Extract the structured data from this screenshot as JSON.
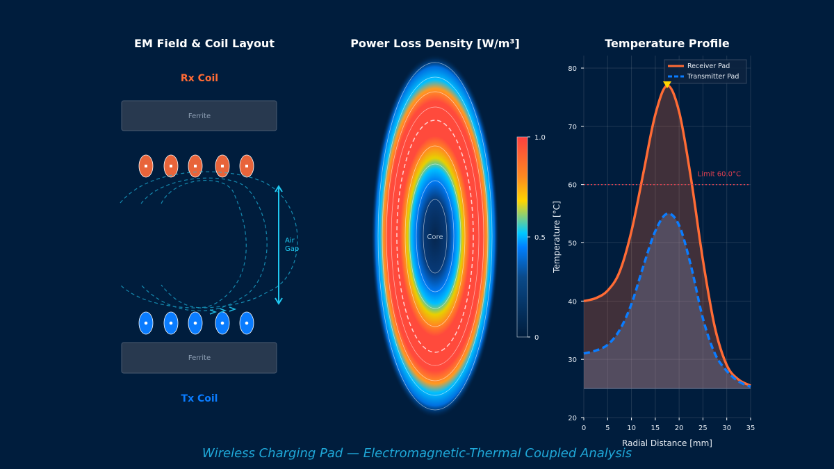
{
  "footer": "Wireless Charging Pad — Electromagnetic-Thermal Coupled Analysis",
  "colors": {
    "background": "#001d3d",
    "receiver": "#ff6b35",
    "transmitter": "#0a7cff",
    "field": "#1fb8e0",
    "limit": "#e04050",
    "accent": "#1fa8d8"
  },
  "panel_left": {
    "title": "EM Field & Coil Layout",
    "rx_label": "Rx Coil",
    "tx_label": "Tx Coil",
    "ferrite_top": "Ferrite",
    "ferrite_bottom": "Ferrite",
    "air_gap_line1": "Air",
    "air_gap_line2": "Gap"
  },
  "panel_middle": {
    "title": "Power Loss Density [W/m³]",
    "core_label": "Core",
    "colorbar_ticks": [
      "1.0",
      "0.5",
      "0"
    ],
    "colorbar_range": [
      0,
      1.0
    ]
  },
  "chart_data": {
    "type": "line",
    "title": "Temperature Profile",
    "xlabel": "Radial Distance [mm]",
    "ylabel": "Temperature [°C]",
    "xlim": [
      0,
      35
    ],
    "ylim": [
      20,
      82
    ],
    "xticks": [
      0,
      5,
      10,
      15,
      20,
      25,
      30,
      35
    ],
    "yticks": [
      20,
      30,
      40,
      50,
      60,
      70,
      80
    ],
    "grid": true,
    "legend_placement": "top-right",
    "x": [
      0,
      2.5,
      5,
      7.5,
      10,
      12.5,
      15,
      17.5,
      20,
      22.5,
      25,
      27.5,
      30,
      32.5,
      35
    ],
    "series": [
      {
        "name": "Receiver Pad",
        "style": "solid",
        "color": "#ff6b35",
        "values": [
          40,
          40.5,
          41.8,
          45,
          52,
          62,
          72,
          77,
          72.5,
          61,
          47,
          35.5,
          29,
          26.5,
          25.5
        ]
      },
      {
        "name": "Transmitter Pad",
        "style": "dashed",
        "color": "#0a7cff",
        "values": [
          31,
          31.5,
          32.5,
          35,
          39.5,
          46,
          52,
          55,
          53,
          46,
          37,
          31,
          28,
          26.2,
          25.3
        ]
      }
    ],
    "fill_baseline": 25,
    "peak_marker": {
      "x": 17.5,
      "y": 77
    },
    "limit_line": {
      "y": 60,
      "label": "Limit 60.0°C"
    }
  }
}
